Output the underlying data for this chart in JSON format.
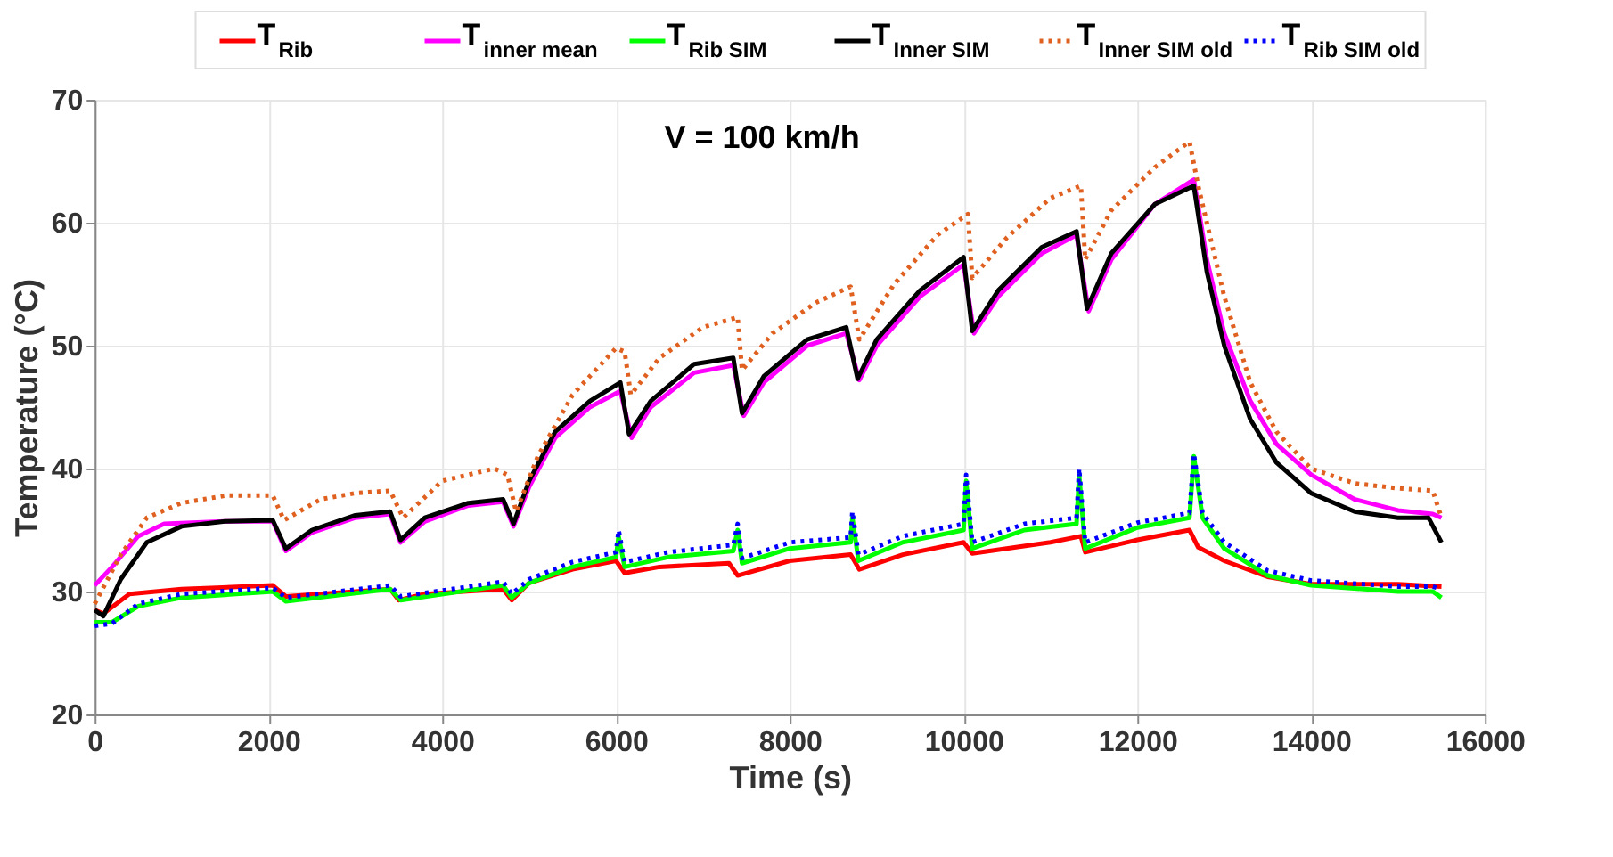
{
  "chart_data": {
    "type": "line",
    "xlabel": "Time (s)",
    "ylabel": "Temperature (°C)",
    "annotations": [
      "V = 100 km/h"
    ],
    "xlim": [
      0,
      16000
    ],
    "xticks": [
      0,
      2000,
      4000,
      6000,
      8000,
      10000,
      12000,
      14000,
      16000
    ],
    "ylim": [
      20,
      70
    ],
    "yticks": [
      20,
      30,
      40,
      50,
      60,
      70
    ],
    "grid": true,
    "legend": "top",
    "marker": "none",
    "series": [
      {
        "name": "T$_{Rib}$",
        "color": "#ff0000",
        "line_style": "solid",
        "x": [
          0,
          100,
          400,
          1000,
          2050,
          2200,
          3400,
          3500,
          3800,
          4700,
          4800,
          5000,
          5500,
          6000,
          6100,
          6500,
          7300,
          7400,
          8000,
          8700,
          8800,
          9300,
          10000,
          10100,
          11000,
          11350,
          11400,
          12000,
          12600,
          12700,
          13000,
          13500,
          14000,
          15000,
          15500
        ],
        "values": [
          28.5,
          28.2,
          29.8,
          30.2,
          30.5,
          29.6,
          30.2,
          29.3,
          29.8,
          30.2,
          29.3,
          30.7,
          31.8,
          32.5,
          31.5,
          32,
          32.3,
          31.3,
          32.5,
          33,
          31.8,
          33,
          34,
          33.1,
          34,
          34.5,
          33.2,
          34.2,
          35,
          33.6,
          32.5,
          31.2,
          30.6,
          30.6,
          30.4
        ]
      },
      {
        "name": "T$_{inner mean}$",
        "color": "#ff00ff",
        "line_style": "solid",
        "x": [
          0,
          200,
          500,
          800,
          1500,
          2050,
          2200,
          2500,
          3000,
          3400,
          3520,
          3800,
          4300,
          4700,
          4820,
          5000,
          5300,
          5700,
          6050,
          6180,
          6400,
          6900,
          7350,
          7470,
          7700,
          8200,
          8650,
          8800,
          9000,
          9500,
          10000,
          10120,
          10400,
          10900,
          11300,
          11440,
          11700,
          12200,
          12650,
          12800,
          13000,
          13300,
          13600,
          14000,
          14500,
          15000,
          15400,
          15500
        ],
        "values": [
          30.5,
          32,
          34.5,
          35.5,
          35.7,
          35.7,
          33.3,
          34.8,
          36,
          36.3,
          34,
          35.7,
          37,
          37.3,
          35.3,
          38.5,
          42.5,
          45,
          46.3,
          42.5,
          45,
          47.8,
          48.4,
          44.3,
          47,
          50,
          51,
          47.2,
          50,
          54,
          56.6,
          51,
          54,
          57.5,
          59,
          52.8,
          57,
          61.5,
          63.5,
          57,
          51,
          45.5,
          42,
          39.5,
          37.5,
          36.6,
          36.3,
          36
        ]
      },
      {
        "name": "T$_{Rib SIM}$",
        "color": "#00ff00",
        "line_style": "solid",
        "x": [
          0,
          200,
          500,
          1000,
          2050,
          2200,
          3400,
          3520,
          4700,
          4800,
          5000,
          5500,
          6000,
          6030,
          6100,
          6600,
          7350,
          7400,
          7450,
          8000,
          8700,
          8720,
          8790,
          9300,
          10000,
          10030,
          10100,
          10700,
          11300,
          11330,
          11400,
          12000,
          12600,
          12650,
          12750,
          13000,
          13500,
          14000,
          15000,
          15400,
          15500
        ],
        "values": [
          27.5,
          27.5,
          28.8,
          29.5,
          30,
          29.2,
          30.2,
          29.3,
          30.5,
          29.5,
          30.7,
          32,
          32.8,
          34.5,
          32,
          32.8,
          33.3,
          35,
          32.3,
          33.5,
          34,
          36,
          32.5,
          34,
          35,
          39,
          33.5,
          35,
          35.5,
          39.5,
          33.5,
          35.2,
          36,
          41,
          36,
          33.5,
          31.3,
          30.5,
          30,
          30,
          29.5
        ]
      },
      {
        "name": "T$_{Inner SIM}$",
        "color": "#000000",
        "line_style": "solid",
        "x": [
          0,
          100,
          300,
          600,
          1000,
          1500,
          2050,
          2200,
          2500,
          3000,
          3400,
          3520,
          3800,
          4300,
          4700,
          4820,
          5000,
          5300,
          5700,
          6050,
          6150,
          6400,
          6900,
          7350,
          7450,
          7700,
          8200,
          8650,
          8780,
          9000,
          9500,
          10000,
          10100,
          10400,
          10900,
          11300,
          11420,
          11700,
          12200,
          12650,
          12800,
          13000,
          13300,
          13600,
          14000,
          14500,
          15000,
          15350,
          15500
        ],
        "values": [
          28.5,
          28,
          31,
          34,
          35.3,
          35.7,
          35.8,
          33.5,
          35,
          36.2,
          36.5,
          34.2,
          36,
          37.2,
          37.5,
          35.5,
          39,
          43,
          45.5,
          47,
          42.8,
          45.5,
          48.5,
          49,
          44.5,
          47.5,
          50.5,
          51.5,
          47.3,
          50.5,
          54.5,
          57.2,
          51.2,
          54.5,
          58,
          59.3,
          53,
          57.5,
          61.5,
          63,
          56,
          50,
          44,
          40.5,
          38,
          36.5,
          36,
          36,
          34
        ]
      },
      {
        "name": "T$_{Inner SIM old}$",
        "color": "#e06020",
        "line_style": "dotted",
        "x": [
          0,
          300,
          600,
          1000,
          1500,
          2050,
          2180,
          2600,
          3000,
          3400,
          3550,
          4000,
          4600,
          4750,
          4850,
          5100,
          5500,
          6000,
          6100,
          6170,
          6500,
          7000,
          7400,
          7450,
          7800,
          8300,
          8700,
          8800,
          9200,
          9700,
          10050,
          10100,
          10500,
          11000,
          11350,
          11400,
          11700,
          12200,
          12600,
          12700,
          13000,
          13300,
          13600,
          14000,
          14500,
          15000,
          15400,
          15500
        ],
        "values": [
          29,
          33,
          36,
          37.2,
          37.8,
          37.8,
          35.8,
          37.5,
          38,
          38.2,
          36,
          39,
          40,
          39.5,
          36.5,
          41,
          46,
          49.8,
          49.5,
          46,
          49,
          51.5,
          52.3,
          48,
          51,
          53.5,
          54.8,
          50.5,
          55,
          59,
          60.7,
          55.5,
          58.8,
          62,
          63,
          57,
          61,
          64.5,
          66.6,
          63,
          54,
          47,
          43,
          40,
          38.8,
          38.4,
          38.2,
          36
        ]
      },
      {
        "name": "T$_{Rib SIM old}$",
        "color": "#0000ff",
        "line_style": "dotted",
        "x": [
          0,
          200,
          500,
          1000,
          2050,
          2200,
          3400,
          3520,
          4700,
          4800,
          5000,
          5500,
          6000,
          6030,
          6100,
          6600,
          7350,
          7400,
          7450,
          8000,
          8700,
          8720,
          8790,
          9300,
          10000,
          10030,
          10100,
          10700,
          11300,
          11330,
          11400,
          12000,
          12600,
          12650,
          12750,
          13000,
          13500,
          14000,
          15000,
          15400,
          15500
        ],
        "values": [
          27.2,
          27.4,
          29,
          29.8,
          30.3,
          29.5,
          30.5,
          29.6,
          30.8,
          29.8,
          31,
          32.4,
          33.2,
          35,
          32.4,
          33.2,
          33.8,
          35.5,
          32.7,
          34,
          34.4,
          36.5,
          33,
          34.5,
          35.5,
          39.5,
          34,
          35.5,
          36,
          40,
          34,
          35.6,
          36.4,
          41.2,
          36.4,
          34,
          31.7,
          30.9,
          30.4,
          30.4,
          30.2
        ]
      }
    ]
  }
}
